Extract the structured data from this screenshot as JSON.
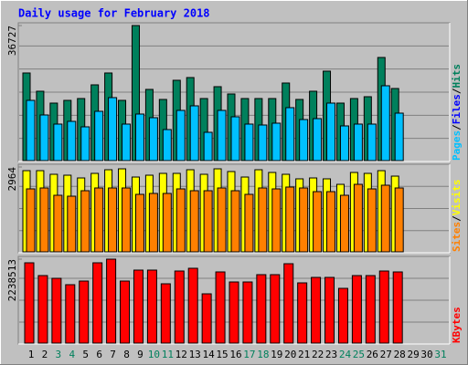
{
  "chart_data": {
    "type": "bar",
    "title": "Daily usage for February 2018",
    "categories": [
      "1",
      "2",
      "3",
      "4",
      "5",
      "6",
      "7",
      "8",
      "9",
      "10",
      "11",
      "12",
      "13",
      "14",
      "15",
      "16",
      "17",
      "18",
      "19",
      "20",
      "21",
      "22",
      "23",
      "24",
      "25",
      "26",
      "27",
      "28",
      "29",
      "30",
      "31"
    ],
    "category_colors": [
      "#000000",
      "#000000",
      "#00805c",
      "#00805c",
      "#000000",
      "#000000",
      "#000000",
      "#000000",
      "#000000",
      "#00805c",
      "#00805c",
      "#000000",
      "#000000",
      "#000000",
      "#000000",
      "#000000",
      "#00805c",
      "#00805c",
      "#000000",
      "#000000",
      "#000000",
      "#000000",
      "#000000",
      "#00805c",
      "#00805c",
      "#000000",
      "#000000",
      "#000000",
      "#000000",
      "#000000",
      "#00805c"
    ],
    "panels": [
      {
        "ylim": [
          0,
          36727
        ],
        "yticks": [
          36727
        ],
        "legend": [
          {
            "name": "Pages",
            "color": "#00c0ff"
          },
          {
            "name": "Files",
            "color": "#0000ff"
          },
          {
            "name": "Hits",
            "color": "#00805c"
          }
        ],
        "series": [
          {
            "name": "Hits",
            "color": "#00805c",
            "values": [
              23827,
              18863,
              15637,
              16381,
              16878,
              20601,
              23827,
              16381,
              36727,
              19360,
              16630,
              21842,
              22586,
              16878,
              20104,
              18119,
              16878,
              16878,
              16878,
              21097,
              16630,
              18863,
              24324,
              15637,
              16878,
              17374,
              28047,
              19608,
              null,
              null,
              null
            ]
          },
          {
            "name": "Pages",
            "color": "#00c0ff",
            "values": [
              16381,
              12410,
              9928,
              10673,
              9183,
              13403,
              17126,
              9928,
              12658,
              11665,
              8439,
              13651,
              14892,
              7694,
              13651,
              11914,
              9928,
              9680,
              10176,
              14396,
              11169,
              11417,
              15637,
              9432,
              9928,
              9928,
              20352,
              12906,
              null,
              null,
              null
            ]
          }
        ]
      },
      {
        "ylim": [
          0,
          2964
        ],
        "yticks": [
          2964
        ],
        "legend": [
          {
            "name": "Sites",
            "color": "#ff8000"
          },
          {
            "name": "Visits",
            "color": "#ffff00"
          }
        ],
        "series": [
          {
            "name": "Visits",
            "color": "#ffff00",
            "values": [
              2836,
              2836,
              2709,
              2677,
              2581,
              2741,
              2868,
              2900,
              2613,
              2677,
              2741,
              2741,
              2868,
              2709,
              2900,
              2805,
              2613,
              2868,
              2773,
              2709,
              2550,
              2581,
              2550,
              2358,
              2773,
              2741,
              2836,
              2645,
              null,
              null,
              null
            ]
          },
          {
            "name": "Sites",
            "color": "#ff8000",
            "values": [
              2199,
              2231,
              1976,
              1944,
              2135,
              2231,
              2231,
              2231,
              2008,
              2040,
              2040,
              2199,
              2135,
              2135,
              2231,
              2135,
              2008,
              2231,
              2199,
              2263,
              2231,
              2103,
              2103,
              1976,
              2358,
              2199,
              2327,
              2231,
              null,
              null,
              null
            ]
          }
        ]
      },
      {
        "ylim": [
          0,
          2238513
        ],
        "yticks": [
          2238513
        ],
        "legend": [
          {
            "name": "KBytes",
            "color": "#ff0000"
          }
        ],
        "series": [
          {
            "name": "KBytes",
            "color": "#ff0000",
            "values": [
              2141216,
              1800568,
              1727572,
              1557248,
              1654576,
              2141216,
              2238513,
              1654576,
              1946560,
              1946560,
              1581580,
              1922228,
              1995224,
              1313928,
              1897896,
              1630244,
              1630244,
              1824900,
              1824900,
              2116884,
              1605912,
              1751904,
              1751904,
              1459920,
              1800568,
              1800568,
              1922228,
              1897896,
              null,
              null,
              null
            ]
          }
        ]
      }
    ]
  }
}
